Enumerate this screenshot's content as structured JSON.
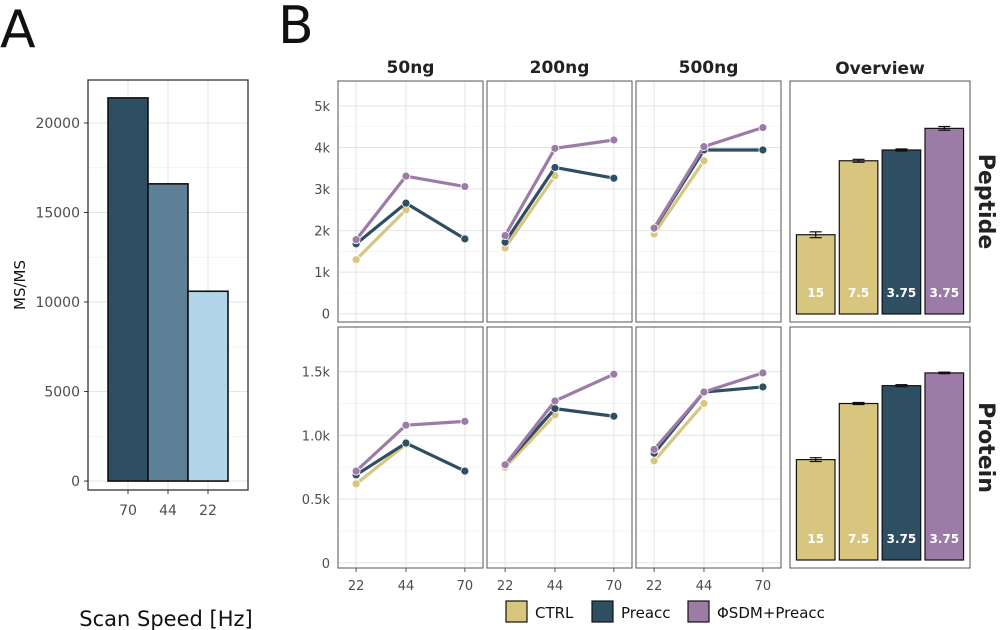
{
  "colors": {
    "ctrl": "#d8c67e",
    "preacc": "#2e4e62",
    "phisdm": "#9d7ba7",
    "bar_a": [
      "#2e4e62",
      "#5e8096",
      "#b3d5ea"
    ],
    "grid": "#e4e4e4",
    "frame": "#333333",
    "axis_text": "#4d4d4d"
  },
  "legend": {
    "ctrl": "CTRL",
    "preacc": "Preacc",
    "phisdm": "ΦSDM+Preacc"
  },
  "chart_data": [
    {
      "panel": "A",
      "type": "bar",
      "ylabel": "MS/MS",
      "xlabel": "Scan Speed [Hz]",
      "categories": [
        "70",
        "44",
        "22"
      ],
      "values": [
        21400,
        16600,
        10600
      ],
      "ylim": [
        -500,
        22400
      ],
      "yticks": [
        0,
        5000,
        10000,
        15000,
        20000
      ],
      "grid": true
    },
    {
      "panel": "B",
      "type": "line",
      "facets_col": [
        "50ng",
        "200ng",
        "500ng"
      ],
      "overview_title": "Overview",
      "facets_row": [
        "Peptide",
        "Protein"
      ],
      "x": [
        22,
        44,
        70
      ],
      "x_tick_labels": [
        "22",
        "44",
        "70"
      ],
      "rows": [
        {
          "name": "Peptide",
          "ylim": [
            -200,
            5600
          ],
          "yticks": [
            0,
            1000,
            2000,
            3000,
            4000,
            5000
          ],
          "ytick_labels": [
            "0",
            "1k",
            "2k",
            "3k",
            "4k",
            "5k"
          ],
          "facets": [
            {
              "name": "50ng",
              "series": [
                {
                  "name": "CTRL",
                  "values": [
                    1300,
                    2500,
                    null
                  ]
                },
                {
                  "name": "Preacc",
                  "values": [
                    1680,
                    2660,
                    1800
                  ]
                },
                {
                  "name": "ΦSDM+Preacc",
                  "values": [
                    1780,
                    3310,
                    3060
                  ]
                }
              ]
            },
            {
              "name": "200ng",
              "series": [
                {
                  "name": "CTRL",
                  "values": [
                    1580,
                    3320,
                    null
                  ]
                },
                {
                  "name": "Preacc",
                  "values": [
                    1720,
                    3520,
                    3260
                  ]
                },
                {
                  "name": "ΦSDM+Preacc",
                  "values": [
                    1880,
                    3980,
                    4180
                  ]
                }
              ]
            },
            {
              "name": "500ng",
              "series": [
                {
                  "name": "CTRL",
                  "values": [
                    1920,
                    3680,
                    null
                  ]
                },
                {
                  "name": "Preacc",
                  "values": [
                    2040,
                    3940,
                    3940
                  ]
                },
                {
                  "name": "ΦSDM+Preacc",
                  "values": [
                    2060,
                    4020,
                    4480
                  ]
                }
              ]
            }
          ],
          "overview": {
            "type": "bar",
            "categories": [
              "CTRL",
              "CTRL",
              "Preacc",
              "ΦSDM+Preacc"
            ],
            "bar_labels": [
              "15",
              "7.5",
              "3.75",
              "3.75"
            ],
            "values": [
              1900,
              3680,
              3940,
              4460
            ],
            "errors": [
              70,
              35,
              25,
              45
            ]
          }
        },
        {
          "name": "Protein",
          "ylim": [
            -40,
            1850
          ],
          "yticks": [
            0,
            500,
            1000,
            1500
          ],
          "ytick_labels": [
            "0",
            "0.5k",
            "1.0k",
            "1.5k"
          ],
          "facets": [
            {
              "name": "50ng",
              "series": [
                {
                  "name": "CTRL",
                  "values": [
                    620,
                    930,
                    null
                  ]
                },
                {
                  "name": "Preacc",
                  "values": [
                    690,
                    940,
                    720
                  ]
                },
                {
                  "name": "ΦSDM+Preacc",
                  "values": [
                    720,
                    1080,
                    1110
                  ]
                }
              ]
            },
            {
              "name": "200ng",
              "series": [
                {
                  "name": "CTRL",
                  "values": [
                    750,
                    1160,
                    null
                  ]
                },
                {
                  "name": "Preacc",
                  "values": [
                    770,
                    1210,
                    1150
                  ]
                },
                {
                  "name": "ΦSDM+Preacc",
                  "values": [
                    770,
                    1270,
                    1480
                  ]
                }
              ]
            },
            {
              "name": "500ng",
              "series": [
                {
                  "name": "CTRL",
                  "values": [
                    800,
                    1250,
                    null
                  ]
                },
                {
                  "name": "Preacc",
                  "values": [
                    860,
                    1340,
                    1380
                  ]
                },
                {
                  "name": "ΦSDM+Preacc",
                  "values": [
                    890,
                    1340,
                    1490
                  ]
                }
              ]
            }
          ],
          "overview": {
            "type": "bar",
            "categories": [
              "CTRL",
              "CTRL",
              "Preacc",
              "ΦSDM+Preacc"
            ],
            "bar_labels": [
              "15",
              "7.5",
              "3.75",
              "3.75"
            ],
            "values": [
              810,
              1250,
              1390,
              1490
            ],
            "errors": [
              15,
              8,
              8,
              6
            ]
          }
        }
      ]
    }
  ]
}
